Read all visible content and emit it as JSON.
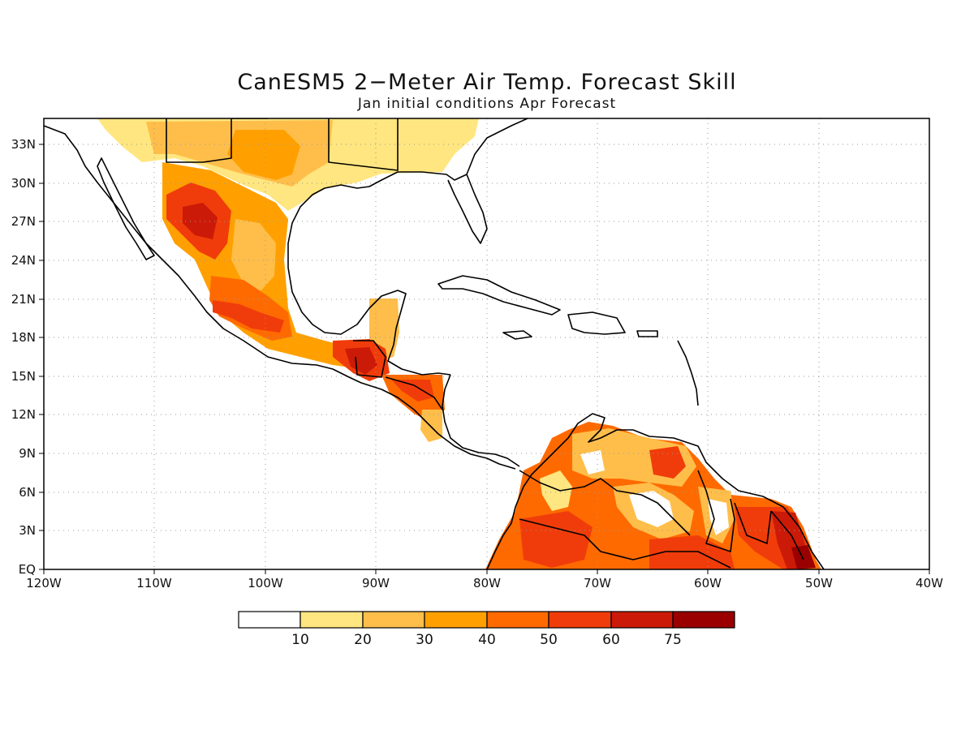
{
  "title": "CanESM5 2−Meter Air Temp. Forecast Skill",
  "subtitle": "Jan initial conditions  Apr Forecast",
  "map": {
    "lon_range": [
      -120,
      -40
    ],
    "lat_range": [
      0,
      35
    ],
    "grid": "dotted",
    "x_ticks": [
      "120W",
      "110W",
      "100W",
      "90W",
      "80W",
      "70W",
      "60W",
      "50W",
      "40W"
    ],
    "y_ticks": [
      "EQ",
      "3N",
      "6N",
      "9N",
      "12N",
      "15N",
      "18N",
      "21N",
      "24N",
      "27N",
      "30N",
      "33N"
    ]
  },
  "colorbar": {
    "levels": [
      "10",
      "20",
      "30",
      "40",
      "50",
      "60",
      "75"
    ],
    "colors": [
      "#ffffff",
      "#ffe680",
      "#ffbe4a",
      "#ffa000",
      "#ff6a00",
      "#f03c0a",
      "#cc1a08",
      "#9a0000"
    ]
  }
}
